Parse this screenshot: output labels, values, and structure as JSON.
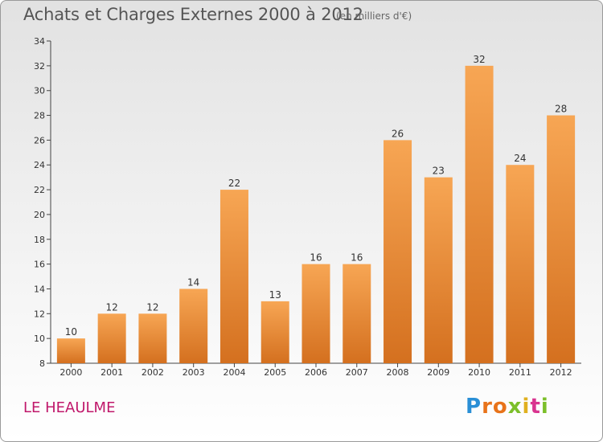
{
  "title": "Achats et Charges Externes 2000 à 2012",
  "subtitle": "(en milliers d'€)",
  "place": "LE HEAULME",
  "brand": {
    "letters": [
      "P",
      "r",
      "o",
      "x",
      "i",
      "t",
      "i"
    ],
    "colors": [
      "#2a8fd6",
      "#e8731a",
      "#e8731a",
      "#7cbf2a",
      "#e0b020",
      "#d9348f",
      "#7cbf2a"
    ]
  },
  "colors": {
    "bar_light": "#f7a654",
    "bar_dark": "#d4701f",
    "axis": "#444444",
    "grid": "#cccccc"
  },
  "chart_data": {
    "type": "bar",
    "title": "Achats et Charges Externes 2000 à 2012",
    "subtitle": "(en milliers d'€)",
    "categories": [
      "2000",
      "2001",
      "2002",
      "2003",
      "2004",
      "2005",
      "2006",
      "2007",
      "2008",
      "2009",
      "2010",
      "2011",
      "2012"
    ],
    "values": [
      10,
      12,
      12,
      14,
      22,
      13,
      16,
      16,
      26,
      23,
      32,
      24,
      28
    ],
    "ylim": [
      8,
      34
    ],
    "yticks": [
      8,
      10,
      12,
      14,
      16,
      18,
      20,
      22,
      24,
      26,
      28,
      30,
      32,
      34
    ],
    "xlabel": "",
    "ylabel": "",
    "grid": false
  }
}
